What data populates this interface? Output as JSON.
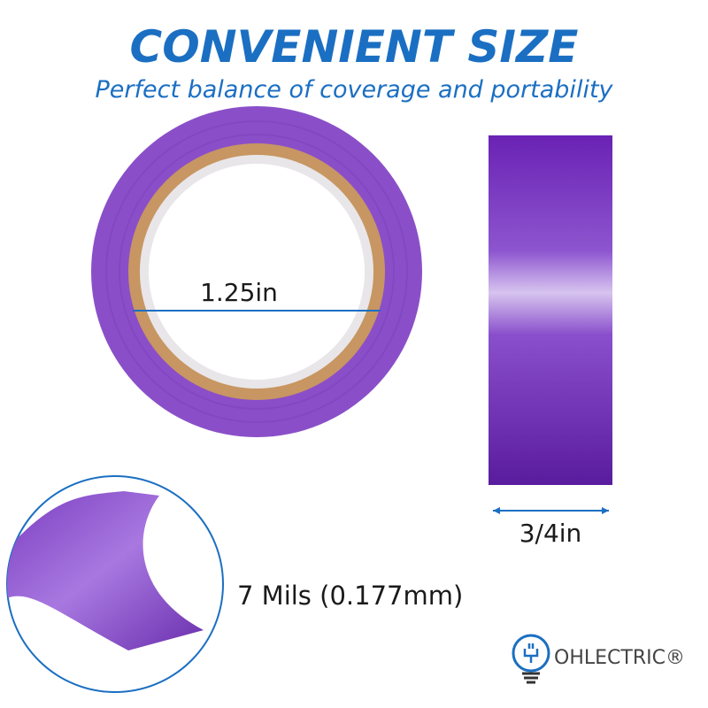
{
  "header": {
    "title": "CONVENIENT SIZE",
    "subtitle": "Perfect balance of coverage and portability"
  },
  "labels": {
    "inner_diameter": "1.25in",
    "width": "3/4in",
    "thickness": "7 Mils (0.177mm)"
  },
  "logo": {
    "text": "OHLECTRIC®"
  }
}
